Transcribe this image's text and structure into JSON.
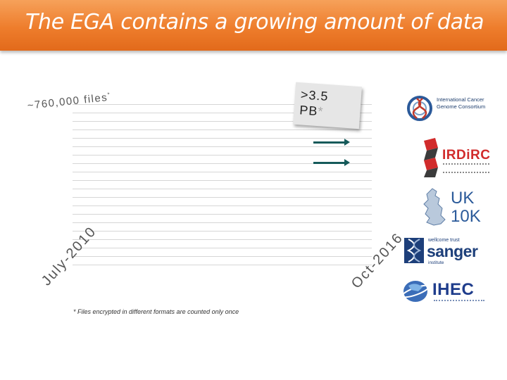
{
  "title": "The EGA contains a growing amount of data",
  "files_label": "~760,000 files",
  "files_mark": "*",
  "pb_label_line1": ">3.5",
  "pb_label_line2": "PB",
  "pb_mark": "*",
  "x_start": "July-2010",
  "x_end": "Oct-2016",
  "footnote": "* Files encrypted in different formats are counted only once",
  "logos": {
    "icgc": "International Cancer Genome Consortium",
    "irdirc": "IRDiRC",
    "uk10k_line1": "UK",
    "uk10k_line2": "10K",
    "sanger_top": "wellcome trust",
    "sanger": "sanger",
    "sanger_bottom": "institute",
    "ihec": "IHEC"
  },
  "colors": {
    "title_bar": "#ee7d2c",
    "arrow": "#155a5a",
    "irdirc_red": "#d12b2b",
    "uk10k_blue": "#2b5a9a",
    "sanger_blue": "#1d3f7a",
    "ihec_blue": "#1f3d8c"
  }
}
